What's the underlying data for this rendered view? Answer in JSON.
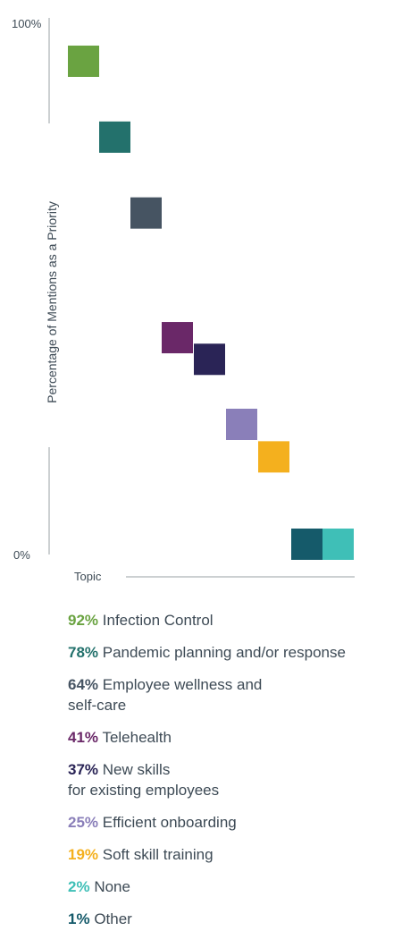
{
  "chart_data": {
    "type": "scatter",
    "title": "",
    "ylabel": "Percentage of Mentions as a Priority",
    "xlabel": "Topic",
    "ylim": [
      0,
      100
    ],
    "ytick_labels": [
      "0%",
      "100%"
    ],
    "grid": false,
    "legend_position": "below",
    "series": [
      {
        "pct": "92%",
        "label": "Infection Control",
        "value": 92,
        "color": "#6aa341"
      },
      {
        "pct": "78%",
        "label": "Pandemic planning and/or response",
        "value": 78,
        "color": "#23716c"
      },
      {
        "pct": "64%",
        "label": "Employee wellness and\nself-care",
        "value": 64,
        "color": "#465462"
      },
      {
        "pct": "41%",
        "label": "Telehealth",
        "value": 41,
        "color": "#6a2868"
      },
      {
        "pct": "37%",
        "label": "New skills\nfor existing employees",
        "value": 37,
        "color": "#2a2456"
      },
      {
        "pct": "25%",
        "label": "Efficient onboarding",
        "value": 25,
        "color": "#8a7fb9"
      },
      {
        "pct": "19%",
        "label": "Soft skill training",
        "value": 19,
        "color": "#f4b01e"
      },
      {
        "pct": "2%",
        "label": "None",
        "value": 2,
        "color": "#3fbfb7"
      },
      {
        "pct": "1%",
        "label": "Other",
        "value": 1,
        "color": "#155a6a"
      }
    ]
  }
}
